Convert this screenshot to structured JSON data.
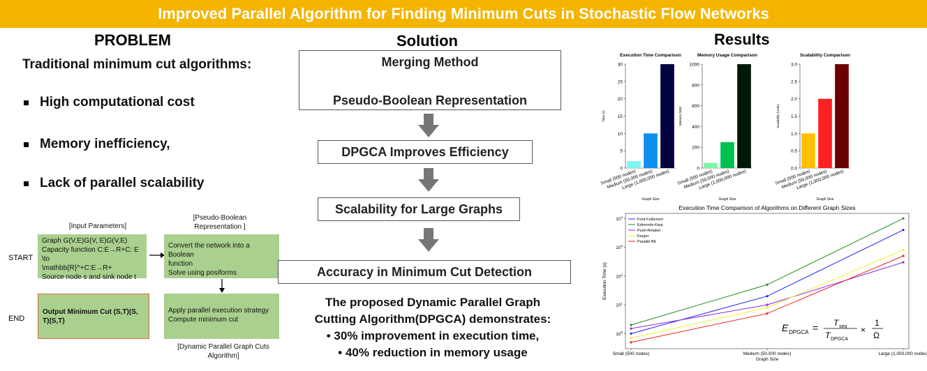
{
  "banner": {
    "title": "Improved Parallel Algorithm for Finding Minimum Cuts in Stochastic Flow Networks"
  },
  "problem": {
    "heading": "PROBLEM",
    "intro": "Traditional minimum cut  algorithms:",
    "bullets": [
      "High computational cost",
      "Memory inefficiency,",
      "Lack of parallel scalability"
    ]
  },
  "flowchart": {
    "input_label": "[Input Parameters]",
    "pb_label_1": "[Pseudo-Boolean",
    "pb_label_2": "Representation ]",
    "start": "START",
    "end": "END",
    "input_box": [
      "Graph G(V,E)G(V, E)G(V,E)",
      "Capacity function C:E→R+C: E \\to",
      "\\mathbb{R}^+C:E→R+",
      "Source node s and sink node t"
    ],
    "convert_box": [
      "Convert the network into a Boolean",
      "function",
      "Solve using posiforms"
    ],
    "output_box": "Output Minimum Cut (S,T)(S, T)(S,T)",
    "parallel_box": [
      "Apply parallel execution strategy",
      "Compute minimum cut"
    ],
    "dpgca_label_1": "[Dynamic Parallel Graph Cuts",
    "dpgca_label_2": "Algorithm]"
  },
  "solution": {
    "heading": "Solution",
    "box1_line1": "Merging Method",
    "box1_line2": "Pseudo-Boolean Representation",
    "box2": "DPGCA Improves Efficiency",
    "box3": "Scalability for Large Graphs",
    "box4": "Accuracy in Minimum Cut Detection",
    "summary_1": "The proposed Dynamic Parallel Graph",
    "summary_2": "Cutting Algorithm(DPGCA) demonstrates:",
    "summary_3": "• 30% improvement in execution time,",
    "summary_4": "• 40% reduction in memory usage"
  },
  "results": {
    "heading": "Results"
  },
  "chart_data": [
    {
      "type": "bar",
      "title": "Execution Time Comparison",
      "xlabel": "Graph Size",
      "ylabel": "Time (s)",
      "categories": [
        "Small (500 nodes)",
        "Medium (50,000 nodes)",
        "Large (1,000,000 nodes)"
      ],
      "values": [
        2,
        10,
        30
      ],
      "colors": [
        "#7ff5f5",
        "#0e8ff0",
        "#03033f"
      ],
      "ylim": [
        0,
        30
      ],
      "yticks": [
        "0",
        "5",
        "10",
        "15",
        "20",
        "25",
        "30"
      ]
    },
    {
      "type": "bar",
      "title": "Memory Usage Comparison",
      "xlabel": "Graph Size",
      "ylabel": "Memory (MB)",
      "categories": [
        "Small (500 nodes)",
        "Medium (50,000 nodes)",
        "Large (1,000,000 nodes)"
      ],
      "values": [
        50,
        250,
        1000
      ],
      "colors": [
        "#7ff5a5",
        "#00c050",
        "#001808"
      ],
      "ylim": [
        0,
        1000
      ],
      "yticks": [
        "0",
        "200",
        "400",
        "600",
        "800",
        "1000"
      ]
    },
    {
      "type": "bar",
      "title": "Scalability Comparison",
      "xlabel": "Graph Size",
      "ylabel": "Scalability (Units)",
      "categories": [
        "Small (500 nodes)",
        "Medium (50,000 nodes)",
        "Large (1,000,000 nodes)"
      ],
      "values": [
        1,
        2,
        3
      ],
      "colors": [
        "#ffc000",
        "#ff2020",
        "#6a0000"
      ],
      "ylim": [
        0,
        3
      ],
      "yticks": [
        "0.0",
        "0.5",
        "1.0",
        "1.5",
        "2.0",
        "2.5",
        "3.0"
      ]
    },
    {
      "type": "line",
      "title": "Execution Time Comparison of Algorithms on Different Graph Sizes",
      "xlabel": "Graph Size",
      "ylabel": "Execution Time (s)",
      "scale": "log",
      "categories": [
        "Small (500 nodes)",
        "Medium (50,000 nodes)",
        "Large (1,000,000 nodes)"
      ],
      "ylim": [
        0.3,
        15000
      ],
      "yticks": [
        {
          "v": 1,
          "e": "0"
        },
        {
          "v": 10,
          "e": "1"
        },
        {
          "v": 100,
          "e": "2"
        },
        {
          "v": 1000,
          "e": "3"
        },
        {
          "v": 10000,
          "e": "4"
        }
      ],
      "legend": "top-left",
      "series": [
        {
          "name": "Ford-Fulkerson",
          "color": "#2222ee",
          "values": [
            1,
            20,
            4000
          ]
        },
        {
          "name": "Edmonds-Karp",
          "color": "#228b22",
          "values": [
            2,
            50,
            10000
          ]
        },
        {
          "name": "Push-Relabel",
          "color": "#8a2be2",
          "values": [
            1.5,
            10,
            300
          ]
        },
        {
          "name": "Karger",
          "color": "#f0f030",
          "values": [
            0.7,
            8,
            800
          ]
        },
        {
          "name": "Parallel BK",
          "color": "#ee2222",
          "values": [
            0.5,
            5,
            500
          ]
        }
      ],
      "formula": {
        "lhs": "E",
        "lhs_sub": "DPGCA",
        "eq": "=",
        "num": "T",
        "num_sub": "seq",
        "den": "T",
        "den_sub": "DPGCA",
        "times": "×",
        "one": "1",
        "omega": "Ω"
      }
    }
  ]
}
